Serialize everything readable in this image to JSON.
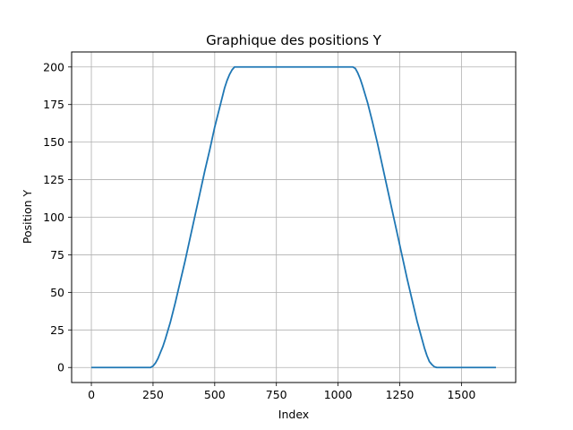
{
  "chart_data": {
    "type": "line",
    "title": "Graphique des positions Y",
    "xlabel": "Index",
    "ylabel": "Position Y",
    "xlim": [
      -80,
      1720
    ],
    "ylim": [
      -10,
      210
    ],
    "xticks": [
      0,
      250,
      500,
      750,
      1000,
      1250,
      1500
    ],
    "xtick_labels": [
      "0",
      "250",
      "500",
      "750",
      "1000",
      "1250",
      "1500"
    ],
    "yticks": [
      0,
      25,
      50,
      75,
      100,
      125,
      150,
      175,
      200
    ],
    "ytick_labels": [
      "0",
      "25",
      "50",
      "75",
      "100",
      "125",
      "150",
      "175",
      "200"
    ],
    "grid": true,
    "line_color": "#1f77b4",
    "series": [
      {
        "x": [
          0,
          240,
          250,
          260,
          270,
          280,
          290,
          300,
          320,
          340,
          360,
          380,
          400,
          420,
          440,
          460,
          480,
          500,
          520,
          540,
          550,
          560,
          570,
          580,
          1060,
          1070,
          1080,
          1090,
          1100,
          1120,
          1140,
          1160,
          1180,
          1200,
          1220,
          1240,
          1260,
          1280,
          1300,
          1320,
          1340,
          1350,
          1360,
          1370,
          1380,
          1390,
          1400,
          1640
        ],
        "y": [
          0,
          0,
          1,
          3,
          6,
          10,
          14,
          19,
          30,
          43,
          57,
          71,
          86,
          101,
          116,
          131,
          145,
          160,
          173,
          186,
          191,
          195,
          198,
          200,
          200,
          199,
          196,
          192,
          187,
          176,
          163,
          149,
          134,
          119,
          104,
          89,
          74,
          59,
          45,
          31,
          19,
          13,
          8,
          4,
          2,
          0.5,
          0,
          0
        ]
      }
    ]
  }
}
